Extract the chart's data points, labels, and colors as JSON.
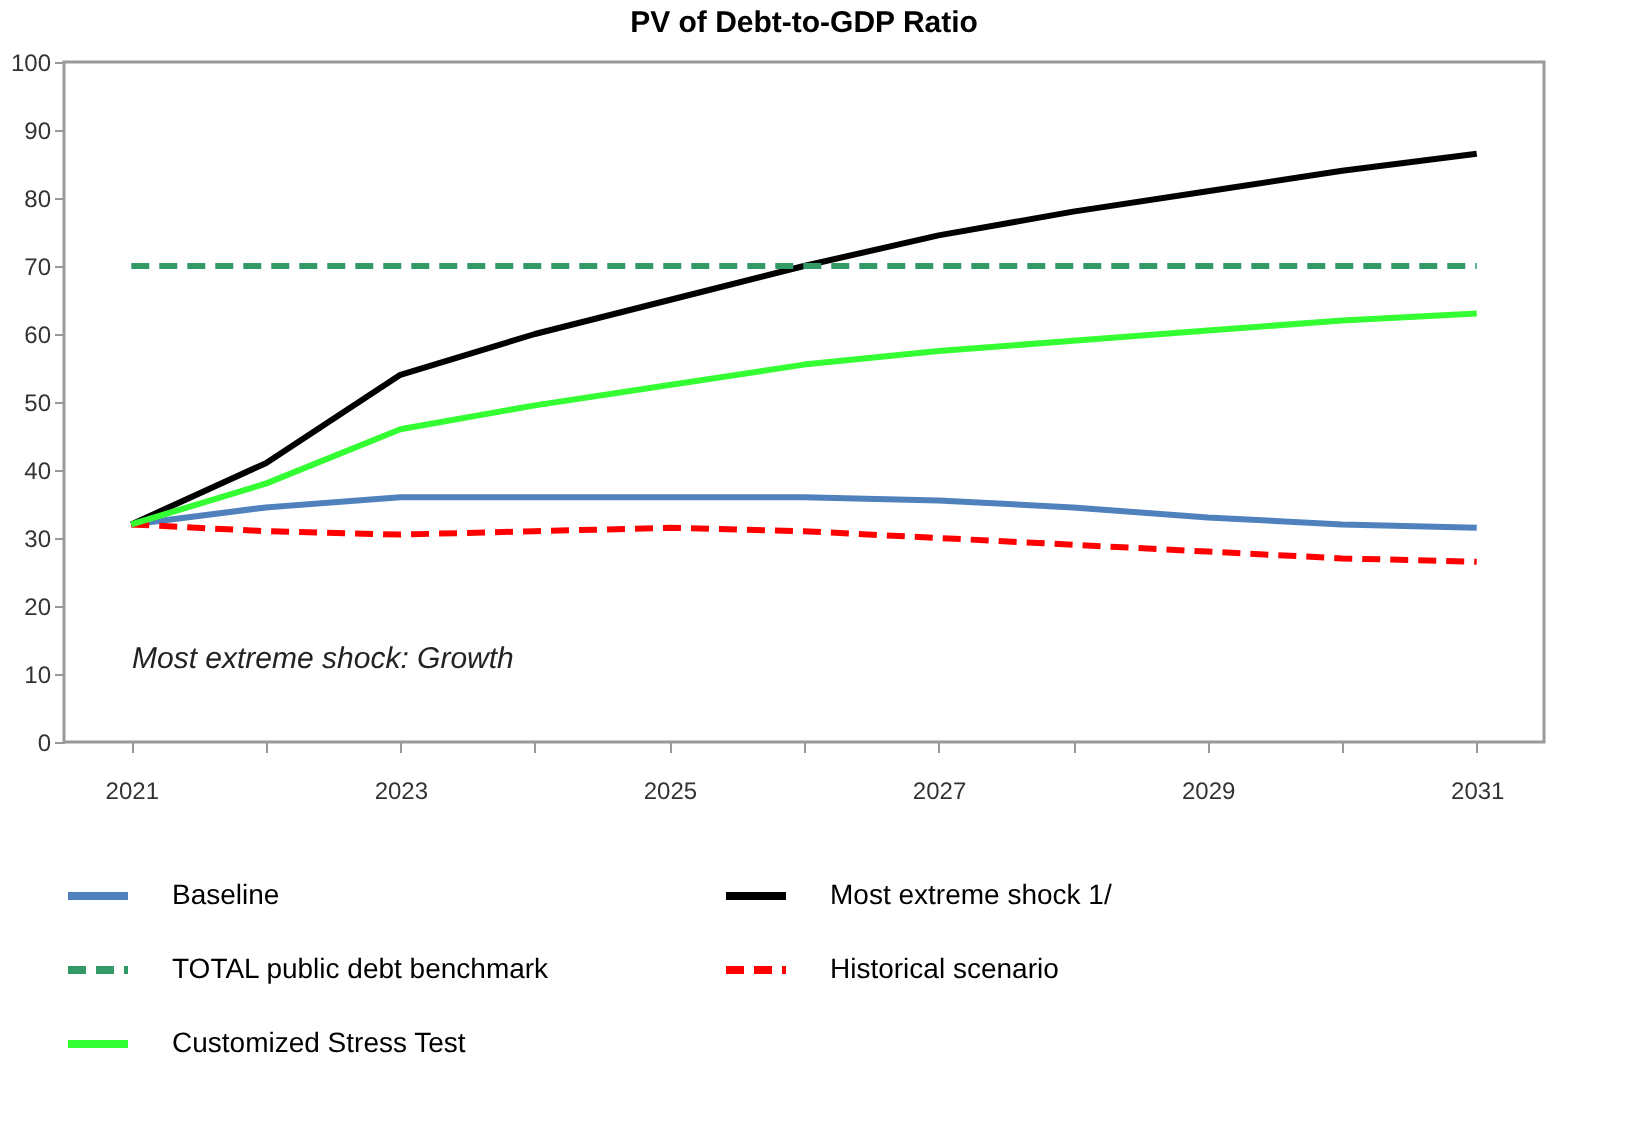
{
  "chart_data": {
    "type": "line",
    "title": "PV of Debt-to-GDP Ratio",
    "categories": [
      "2021",
      null,
      "2023",
      null,
      "2025",
      null,
      "2027",
      null,
      "2029",
      null,
      "2031"
    ],
    "ylim": [
      0,
      100
    ],
    "yticks": [
      0,
      10,
      20,
      30,
      40,
      50,
      60,
      70,
      80,
      90,
      100
    ],
    "grid": false,
    "legend": "bottom",
    "marker": "none",
    "annotations": [
      "Most extreme shock: Growth"
    ],
    "series": [
      {
        "name": "Baseline",
        "color": "#4f81bd",
        "line_style": "solid",
        "values": [
          32,
          34.5,
          36,
          36,
          36,
          36,
          35.5,
          34.5,
          33,
          32,
          31.5
        ]
      },
      {
        "name": "Most extreme shock 1/",
        "color": "#000000",
        "line_style": "solid",
        "values": [
          32,
          41,
          54,
          60,
          65,
          70,
          74.5,
          78,
          81,
          84,
          86.5
        ]
      },
      {
        "name": "TOTAL public debt benchmark",
        "color": "#339966",
        "line_style": "dashed",
        "values": [
          70,
          70,
          70,
          70,
          70,
          70,
          70,
          70,
          70,
          70,
          70
        ]
      },
      {
        "name": "Historical scenario",
        "color": "#ff0000",
        "line_style": "dashed",
        "values": [
          32,
          31,
          30.5,
          31,
          31.5,
          31,
          30,
          29,
          28,
          27,
          26.5
        ]
      },
      {
        "name": "Customized Stress Test",
        "color": "#33ff33",
        "line_style": "solid",
        "values": [
          32,
          38,
          46,
          49.5,
          52.5,
          55.5,
          57.5,
          59,
          60.5,
          62,
          63
        ]
      }
    ]
  }
}
